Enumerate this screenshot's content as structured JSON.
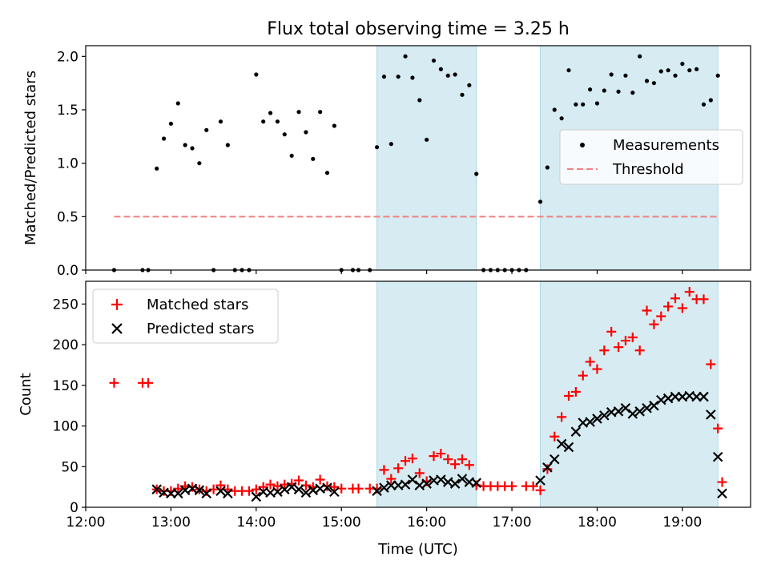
{
  "colors": {
    "measurement": "#000000",
    "threshold": "#f08080",
    "matched": "#ff0000",
    "predicted": "#000000",
    "shade": "#add8e6"
  },
  "chart_data": [
    {
      "type": "scatter",
      "title": "Flux total observing time = 3.25 h",
      "xlabel": "",
      "ylabel": "Matched/Predicted stars",
      "xlim": [
        "12:00",
        "19:48"
      ],
      "ylim": [
        0,
        2.1
      ],
      "yticks": [
        "0.0",
        "0.5",
        "1.0",
        "1.5",
        "2.0"
      ],
      "grid": false,
      "legend_position": "center-right",
      "shaded_regions": [
        [
          "15:25",
          "16:35"
        ],
        [
          "17:20",
          "19:25"
        ]
      ],
      "threshold": {
        "name": "Threshold",
        "value": 0.5,
        "x_range": [
          "12:20",
          "19:25"
        ]
      },
      "legend": [
        "Measurements",
        "Threshold"
      ],
      "series": [
        {
          "name": "Measurements",
          "points": [
            [
              "12:20",
              0.0
            ],
            [
              "12:40",
              0.0
            ],
            [
              "12:44",
              0.0
            ],
            [
              "12:50",
              0.95
            ],
            [
              "12:55",
              1.23
            ],
            [
              "13:00",
              1.37
            ],
            [
              "13:05",
              1.56
            ],
            [
              "13:10",
              1.17
            ],
            [
              "13:15",
              1.14
            ],
            [
              "13:20",
              1.0
            ],
            [
              "13:25",
              1.31
            ],
            [
              "13:30",
              0.0
            ],
            [
              "13:35",
              1.39
            ],
            [
              "13:40",
              1.17
            ],
            [
              "13:45",
              0.0
            ],
            [
              "13:50",
              0.0
            ],
            [
              "13:55",
              0.0
            ],
            [
              "14:00",
              1.83
            ],
            [
              "14:05",
              1.39
            ],
            [
              "14:10",
              1.47
            ],
            [
              "14:15",
              1.39
            ],
            [
              "14:20",
              1.27
            ],
            [
              "14:25",
              1.07
            ],
            [
              "14:30",
              1.48
            ],
            [
              "14:35",
              1.29
            ],
            [
              "14:40",
              1.04
            ],
            [
              "14:45",
              1.48
            ],
            [
              "14:50",
              0.91
            ],
            [
              "14:55",
              1.35
            ],
            [
              "15:00",
              0.0
            ],
            [
              "15:08",
              0.0
            ],
            [
              "15:12",
              0.0
            ],
            [
              "15:20",
              0.0
            ],
            [
              "15:25",
              1.15
            ],
            [
              "15:30",
              1.81
            ],
            [
              "15:35",
              1.18
            ],
            [
              "15:40",
              1.81
            ],
            [
              "15:45",
              2.0
            ],
            [
              "15:50",
              1.8
            ],
            [
              "15:55",
              1.59
            ],
            [
              "16:00",
              1.22
            ],
            [
              "16:05",
              1.96
            ],
            [
              "16:10",
              1.88
            ],
            [
              "16:15",
              1.82
            ],
            [
              "16:20",
              1.83
            ],
            [
              "16:25",
              1.64
            ],
            [
              "16:30",
              1.73
            ],
            [
              "16:35",
              0.9
            ],
            [
              "16:40",
              0.0
            ],
            [
              "16:45",
              0.0
            ],
            [
              "16:50",
              0.0
            ],
            [
              "16:55",
              0.0
            ],
            [
              "17:00",
              0.0
            ],
            [
              "17:05",
              0.0
            ],
            [
              "17:10",
              0.0
            ],
            [
              "17:20",
              0.64
            ],
            [
              "17:25",
              0.96
            ],
            [
              "17:30",
              1.5
            ],
            [
              "17:35",
              1.42
            ],
            [
              "17:40",
              1.87
            ],
            [
              "17:45",
              1.55
            ],
            [
              "17:50",
              1.55
            ],
            [
              "17:55",
              1.69
            ],
            [
              "18:00",
              1.56
            ],
            [
              "18:05",
              1.68
            ],
            [
              "18:10",
              1.83
            ],
            [
              "18:15",
              1.67
            ],
            [
              "18:20",
              1.82
            ],
            [
              "18:25",
              1.66
            ],
            [
              "18:30",
              2.0
            ],
            [
              "18:35",
              1.77
            ],
            [
              "18:40",
              1.75
            ],
            [
              "18:45",
              1.86
            ],
            [
              "18:50",
              1.87
            ],
            [
              "18:55",
              1.82
            ],
            [
              "19:00",
              1.93
            ],
            [
              "19:05",
              1.87
            ],
            [
              "19:10",
              1.88
            ],
            [
              "19:15",
              1.55
            ],
            [
              "19:20",
              1.59
            ],
            [
              "19:25",
              1.82
            ]
          ]
        }
      ]
    },
    {
      "type": "scatter",
      "title": "",
      "xlabel": "Time (UTC)",
      "ylabel": "Count",
      "xlim": [
        "12:00",
        "19:48"
      ],
      "ylim": [
        0,
        278
      ],
      "xticks": [
        "12:00",
        "13:00",
        "14:00",
        "15:00",
        "16:00",
        "17:00",
        "18:00",
        "19:00"
      ],
      "yticks": [
        "0",
        "50",
        "100",
        "150",
        "200",
        "250"
      ],
      "grid": false,
      "legend_position": "top-left",
      "shaded_regions": [
        [
          "15:25",
          "16:35"
        ],
        [
          "17:20",
          "19:25"
        ]
      ],
      "legend": [
        "Matched stars",
        "Predicted stars"
      ],
      "series": [
        {
          "name": "Matched stars",
          "points": [
            [
              "12:20",
              153
            ],
            [
              "12:40",
              153
            ],
            [
              "12:44",
              153
            ],
            [
              "12:50",
              22
            ],
            [
              "12:55",
              20
            ],
            [
              "13:00",
              20
            ],
            [
              "13:05",
              23
            ],
            [
              "13:10",
              26
            ],
            [
              "13:15",
              25
            ],
            [
              "13:20",
              22
            ],
            [
              "13:25",
              20
            ],
            [
              "13:30",
              22
            ],
            [
              "13:35",
              27
            ],
            [
              "13:40",
              22
            ],
            [
              "13:45",
              20
            ],
            [
              "13:50",
              20
            ],
            [
              "13:55",
              20
            ],
            [
              "14:00",
              22
            ],
            [
              "14:05",
              25
            ],
            [
              "14:10",
              28
            ],
            [
              "14:15",
              26
            ],
            [
              "14:20",
              28
            ],
            [
              "14:25",
              29
            ],
            [
              "14:30",
              33
            ],
            [
              "14:35",
              27
            ],
            [
              "14:40",
              25
            ],
            [
              "14:45",
              34
            ],
            [
              "14:50",
              26
            ],
            [
              "14:55",
              25
            ],
            [
              "15:00",
              23
            ],
            [
              "15:08",
              23
            ],
            [
              "15:12",
              23
            ],
            [
              "15:20",
              23
            ],
            [
              "15:25",
              23
            ],
            [
              "15:30",
              46
            ],
            [
              "15:35",
              35
            ],
            [
              "15:40",
              48
            ],
            [
              "15:45",
              57
            ],
            [
              "15:50",
              60
            ],
            [
              "15:55",
              42
            ],
            [
              "16:00",
              32
            ],
            [
              "16:05",
              63
            ],
            [
              "16:10",
              66
            ],
            [
              "16:15",
              59
            ],
            [
              "16:20",
              53
            ],
            [
              "16:25",
              59
            ],
            [
              "16:30",
              52
            ],
            [
              "16:35",
              27
            ],
            [
              "16:40",
              26
            ],
            [
              "16:45",
              26
            ],
            [
              "16:50",
              26
            ],
            [
              "16:55",
              26
            ],
            [
              "17:00",
              26
            ],
            [
              "17:10",
              26
            ],
            [
              "17:15",
              26
            ],
            [
              "17:20",
              21
            ],
            [
              "17:25",
              47
            ],
            [
              "17:30",
              87
            ],
            [
              "17:35",
              111
            ],
            [
              "17:40",
              137
            ],
            [
              "17:45",
              142
            ],
            [
              "17:50",
              162
            ],
            [
              "17:55",
              179
            ],
            [
              "18:00",
              170
            ],
            [
              "18:05",
              193
            ],
            [
              "18:10",
              216
            ],
            [
              "18:15",
              197
            ],
            [
              "18:20",
              205
            ],
            [
              "18:25",
              209
            ],
            [
              "18:30",
              193
            ],
            [
              "18:35",
              242
            ],
            [
              "18:40",
              225
            ],
            [
              "18:45",
              235
            ],
            [
              "18:50",
              247
            ],
            [
              "18:55",
              257
            ],
            [
              "19:00",
              245
            ],
            [
              "19:05",
              265
            ],
            [
              "19:10",
              256
            ],
            [
              "19:15",
              256
            ],
            [
              "19:20",
              176
            ],
            [
              "19:25",
              97
            ],
            [
              "19:28",
              31
            ]
          ]
        },
        {
          "name": "Predicted stars",
          "points": [
            [
              "12:50",
              22
            ],
            [
              "12:55",
              18
            ],
            [
              "13:00",
              17
            ],
            [
              "13:05",
              17
            ],
            [
              "13:10",
              21
            ],
            [
              "13:15",
              23
            ],
            [
              "13:20",
              21
            ],
            [
              "13:25",
              17
            ],
            [
              "13:35",
              20
            ],
            [
              "13:40",
              17
            ],
            [
              "14:00",
              13
            ],
            [
              "14:05",
              19
            ],
            [
              "14:10",
              18
            ],
            [
              "14:15",
              19
            ],
            [
              "14:20",
              22
            ],
            [
              "14:25",
              25
            ],
            [
              "14:30",
              22
            ],
            [
              "14:35",
              18
            ],
            [
              "14:40",
              21
            ],
            [
              "14:45",
              23
            ],
            [
              "14:50",
              24
            ],
            [
              "14:55",
              19
            ],
            [
              "15:25",
              20
            ],
            [
              "15:30",
              24
            ],
            [
              "15:35",
              27
            ],
            [
              "15:40",
              27
            ],
            [
              "15:45",
              28
            ],
            [
              "15:50",
              34
            ],
            [
              "15:55",
              27
            ],
            [
              "16:00",
              29
            ],
            [
              "16:05",
              33
            ],
            [
              "16:10",
              34
            ],
            [
              "16:15",
              31
            ],
            [
              "16:20",
              29
            ],
            [
              "16:25",
              35
            ],
            [
              "16:30",
              31
            ],
            [
              "16:35",
              30
            ],
            [
              "17:20",
              33
            ],
            [
              "17:25",
              49
            ],
            [
              "17:30",
              59
            ],
            [
              "17:35",
              78
            ],
            [
              "17:40",
              74
            ],
            [
              "17:45",
              93
            ],
            [
              "17:50",
              104
            ],
            [
              "17:55",
              105
            ],
            [
              "18:00",
              109
            ],
            [
              "18:05",
              113
            ],
            [
              "18:10",
              117
            ],
            [
              "18:15",
              118
            ],
            [
              "18:20",
              122
            ],
            [
              "18:25",
              115
            ],
            [
              "18:30",
              118
            ],
            [
              "18:35",
              122
            ],
            [
              "18:40",
              125
            ],
            [
              "18:45",
              132
            ],
            [
              "18:50",
              134
            ],
            [
              "18:55",
              136
            ],
            [
              "19:00",
              136
            ],
            [
              "19:05",
              137
            ],
            [
              "19:10",
              136
            ],
            [
              "19:15",
              136
            ],
            [
              "19:20",
              114
            ],
            [
              "19:25",
              62
            ],
            [
              "19:28",
              17
            ]
          ]
        }
      ]
    }
  ]
}
